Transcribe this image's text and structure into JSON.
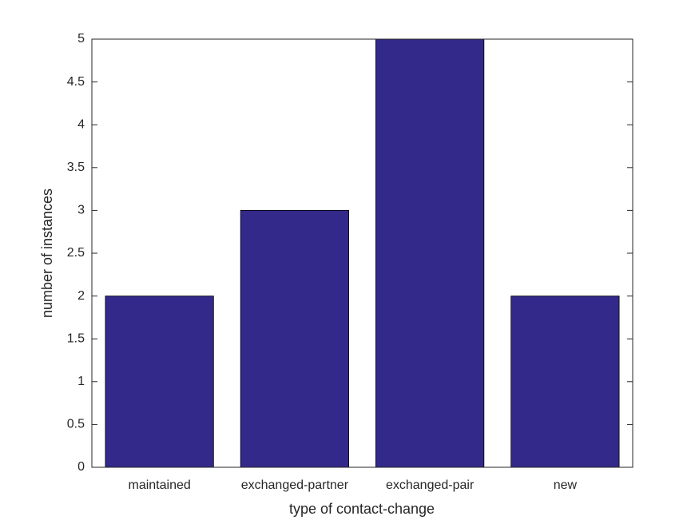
{
  "chart_data": {
    "type": "bar",
    "xlabel": "type of contact-change",
    "ylabel": "number of instances",
    "categories": [
      "maintained",
      "exchanged-partner",
      "exchanged-pair",
      "new"
    ],
    "values": [
      2,
      3,
      5,
      2
    ],
    "color": "#33298a",
    "ylim": [
      0,
      5
    ],
    "yticks": [
      0,
      0.5,
      1,
      1.5,
      2,
      2.5,
      3,
      3.5,
      4,
      4.5,
      5
    ],
    "grid": false
  }
}
